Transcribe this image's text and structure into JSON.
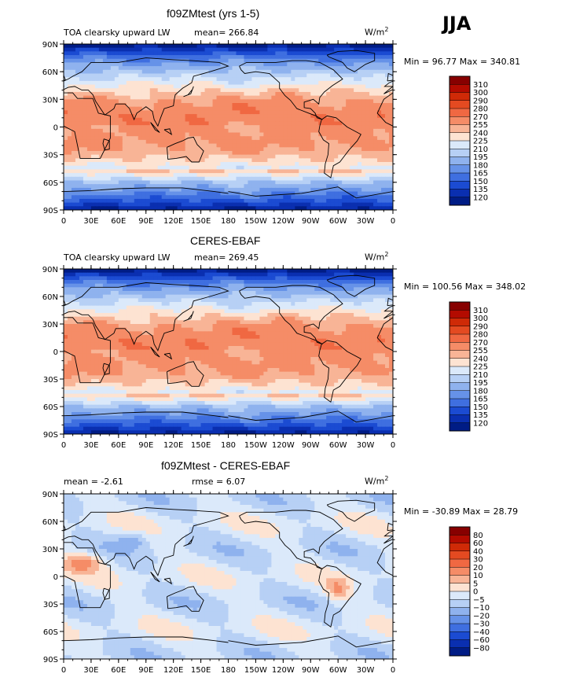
{
  "season": "JJA",
  "units_label": "W/m",
  "units_sup": "2",
  "x_ticks": [
    "0",
    "30E",
    "60E",
    "90E",
    "120E",
    "150E",
    "180",
    "150W",
    "120W",
    "90W",
    "60W",
    "30W",
    "0"
  ],
  "y_ticks": [
    "90N",
    "60N",
    "30N",
    "0",
    "30S",
    "60S",
    "90S"
  ],
  "panels": [
    {
      "title": "f09ZMtest (yrs 1-5)",
      "left_label": "TOA clearsky upward LW",
      "stat1": "mean= 266.84",
      "stat2": "",
      "minmax": "Min =  96.77 Max = 340.81",
      "field": "mean",
      "levels": [
        "310",
        "300",
        "290",
        "280",
        "270",
        "255",
        "240",
        "225",
        "210",
        "195",
        "180",
        "165",
        "150",
        "135",
        "120"
      ],
      "colors": [
        "#870000",
        "#b30b00",
        "#cf2a07",
        "#e44a21",
        "#f06842",
        "#f58c67",
        "#f8b496",
        "#fde3d2",
        "#dbe9fa",
        "#b7d0f5",
        "#8fb2ee",
        "#6692e8",
        "#3f6fe0",
        "#1b4bd2",
        "#0a2fb0",
        "#001c85"
      ]
    },
    {
      "title": "CERES-EBAF",
      "left_label": "TOA clearsky upward LW",
      "stat1": "mean= 269.45",
      "stat2": "",
      "minmax": "Min = 100.56 Max = 348.02",
      "field": "mean",
      "levels": [
        "310",
        "300",
        "290",
        "280",
        "270",
        "255",
        "240",
        "225",
        "210",
        "195",
        "180",
        "165",
        "150",
        "135",
        "120"
      ],
      "colors": [
        "#870000",
        "#b30b00",
        "#cf2a07",
        "#e44a21",
        "#f06842",
        "#f58c67",
        "#f8b496",
        "#fde3d2",
        "#dbe9fa",
        "#b7d0f5",
        "#8fb2ee",
        "#6692e8",
        "#3f6fe0",
        "#1b4bd2",
        "#0a2fb0",
        "#001c85"
      ]
    },
    {
      "title": "f09ZMtest - CERES-EBAF",
      "left_label": "mean =   -2.61",
      "stat1": "rmse =    6.07",
      "stat2": "",
      "minmax": "Min = -30.89 Max =  28.79",
      "field": "diff",
      "levels": [
        "80",
        "60",
        "40",
        "30",
        "20",
        "10",
        "5",
        "0",
        "−5",
        "−10",
        "−20",
        "−30",
        "−40",
        "−60",
        "−80"
      ],
      "colors": [
        "#870000",
        "#b30b00",
        "#cf2a07",
        "#e44a21",
        "#f06842",
        "#f58c67",
        "#f8b496",
        "#fde3d2",
        "#dbe9fa",
        "#b7d0f5",
        "#8fb2ee",
        "#6692e8",
        "#3f6fe0",
        "#1b4bd2",
        "#0a2fb0",
        "#001c85"
      ]
    }
  ],
  "chart_data": [
    {
      "type": "heatmap",
      "title": "f09ZMtest (yrs 1-5)",
      "subtitle": "TOA clearsky upward LW",
      "mean": 266.84,
      "min": 96.77,
      "max": 340.81,
      "units": "W/m2",
      "season": "JJA",
      "xlim": [
        0,
        360
      ],
      "ylim": [
        -90,
        90
      ],
      "contour_levels": [
        120,
        135,
        150,
        165,
        180,
        195,
        210,
        225,
        240,
        255,
        270,
        280,
        290,
        300,
        310
      ]
    },
    {
      "type": "heatmap",
      "title": "CERES-EBAF",
      "subtitle": "TOA clearsky upward LW",
      "mean": 269.45,
      "min": 100.56,
      "max": 348.02,
      "units": "W/m2",
      "season": "JJA",
      "xlim": [
        0,
        360
      ],
      "ylim": [
        -90,
        90
      ],
      "contour_levels": [
        120,
        135,
        150,
        165,
        180,
        195,
        210,
        225,
        240,
        255,
        270,
        280,
        290,
        300,
        310
      ]
    },
    {
      "type": "heatmap",
      "title": "f09ZMtest - CERES-EBAF",
      "mean": -2.61,
      "rmse": 6.07,
      "min": -30.89,
      "max": 28.79,
      "units": "W/m2",
      "season": "JJA",
      "xlim": [
        0,
        360
      ],
      "ylim": [
        -90,
        90
      ],
      "contour_levels": [
        -80,
        -60,
        -40,
        -30,
        -20,
        -10,
        -5,
        0,
        5,
        10,
        20,
        30,
        40,
        60,
        80
      ]
    }
  ]
}
